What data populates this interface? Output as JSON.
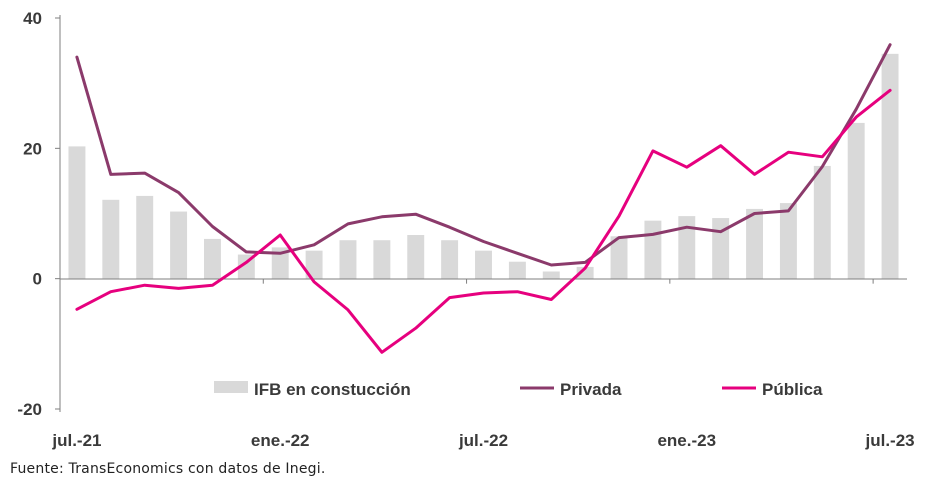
{
  "chart_data": {
    "type": "bar+line",
    "x": [
      "jul.-21",
      "ago.-21",
      "sep.-21",
      "oct.-21",
      "nov.-21",
      "dic.-21",
      "ene.-22",
      "feb.-22",
      "mar.-22",
      "abr.-22",
      "may.-22",
      "jun.-22",
      "jul.-22",
      "ago.-22",
      "sep.-22",
      "oct.-22",
      "nov.-22",
      "dic.-22",
      "ene.-23",
      "feb.-23",
      "mar.-23",
      "abr.-23",
      "may.-23",
      "jun.-23",
      "jul.-23"
    ],
    "x_tick_labels": [
      "jul.-21",
      "ene.-22",
      "jul.-22",
      "ene.-23",
      "jul.-23"
    ],
    "y_ticks": [
      40,
      20,
      0,
      -20
    ],
    "ylim": [
      -20,
      40
    ],
    "grid": false,
    "legend_position": "bottom-center",
    "series": [
      {
        "name": "IFB en constucción",
        "kind": "bar",
        "color": "#d9d9d9",
        "values": [
          20.3,
          12.1,
          12.7,
          10.3,
          6.1,
          3.7,
          4.8,
          4.3,
          5.9,
          5.9,
          6.7,
          5.9,
          4.3,
          2.6,
          1.1,
          1.8,
          6.5,
          8.9,
          9.6,
          9.3,
          10.7,
          11.6,
          17.3,
          23.9,
          34.5
        ]
      },
      {
        "name": "Privada",
        "kind": "line",
        "color": "#8b3a6b",
        "values": [
          34.0,
          16.0,
          16.2,
          13.2,
          8.0,
          4.1,
          3.9,
          5.2,
          8.4,
          9.5,
          9.9,
          7.9,
          5.7,
          3.9,
          2.1,
          2.5,
          6.3,
          6.8,
          7.9,
          7.2,
          10.0,
          10.4,
          17.2,
          26.0,
          35.9
        ]
      },
      {
        "name": "Pública",
        "kind": "line",
        "color": "#e6007e",
        "values": [
          -4.7,
          -2.0,
          -1.0,
          -1.5,
          -1.0,
          2.5,
          6.7,
          -0.5,
          -4.8,
          -11.3,
          -7.6,
          -2.9,
          -2.2,
          -2.0,
          -3.2,
          1.6,
          9.6,
          19.6,
          17.1,
          20.4,
          16.0,
          19.4,
          18.7,
          24.8,
          28.9
        ]
      }
    ],
    "source": "Fuente: TransEconomics con datos de Inegi."
  }
}
